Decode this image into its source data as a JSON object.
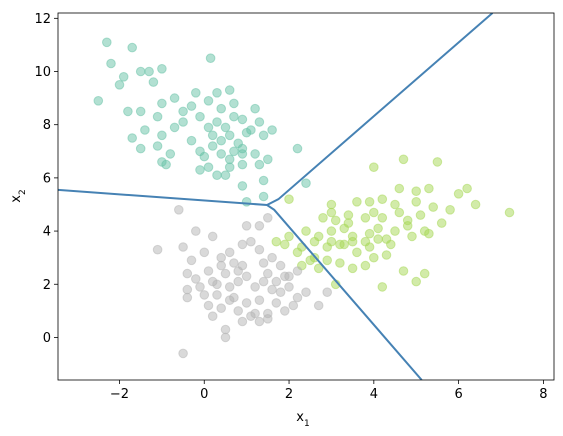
{
  "chart_data": {
    "type": "scatter",
    "title": "",
    "xlabel": "x",
    "xlabel_sub": "1",
    "ylabel": "x",
    "ylabel_sub": "2",
    "xlim": [
      -3.45,
      8.25
    ],
    "ylim": [
      -1.6,
      12.2
    ],
    "xticks": [
      -2,
      0,
      2,
      4,
      6,
      8
    ],
    "yticks": [
      0,
      2,
      4,
      6,
      8,
      10,
      12
    ],
    "grid": false,
    "legend": "none",
    "point_alpha": 0.5,
    "series": [
      {
        "color": "#66c2a5",
        "points": [
          [
            -2.3,
            11.1
          ],
          [
            -1.7,
            10.9
          ],
          [
            -2.2,
            10.3
          ],
          [
            -1.3,
            10.0
          ],
          [
            -1.0,
            10.1
          ],
          [
            0.15,
            10.5
          ],
          [
            -1.5,
            10.0
          ],
          [
            -1.9,
            9.8
          ],
          [
            -2.5,
            8.9
          ],
          [
            -2.0,
            9.5
          ],
          [
            -1.2,
            9.6
          ],
          [
            -0.7,
            9.0
          ],
          [
            -0.2,
            9.2
          ],
          [
            0.3,
            9.2
          ],
          [
            0.6,
            9.3
          ],
          [
            -1.5,
            8.5
          ],
          [
            -1.0,
            8.8
          ],
          [
            -1.1,
            8.3
          ],
          [
            -0.5,
            8.5
          ],
          [
            -0.3,
            8.7
          ],
          [
            0.1,
            8.9
          ],
          [
            0.4,
            8.6
          ],
          [
            0.7,
            8.8
          ],
          [
            1.2,
            8.6
          ],
          [
            -1.8,
            8.5
          ],
          [
            -0.5,
            8.1
          ],
          [
            -0.1,
            8.3
          ],
          [
            0.3,
            8.1
          ],
          [
            0.5,
            7.9
          ],
          [
            0.9,
            8.2
          ],
          [
            1.3,
            8.1
          ],
          [
            -1.4,
            7.8
          ],
          [
            -1.7,
            7.5
          ],
          [
            -1.5,
            7.1
          ],
          [
            -1.0,
            7.6
          ],
          [
            -0.3,
            7.4
          ],
          [
            0.1,
            7.9
          ],
          [
            0.2,
            7.6
          ],
          [
            0.4,
            7.4
          ],
          [
            0.6,
            7.6
          ],
          [
            0.8,
            7.3
          ],
          [
            1.0,
            7.7
          ],
          [
            1.4,
            7.6
          ],
          [
            1.6,
            7.8
          ],
          [
            -1.1,
            7.2
          ],
          [
            -0.8,
            6.9
          ],
          [
            -0.1,
            7.0
          ],
          [
            0.0,
            6.8
          ],
          [
            0.4,
            6.9
          ],
          [
            0.6,
            6.7
          ],
          [
            0.7,
            7.0
          ],
          [
            0.9,
            6.9
          ],
          [
            1.2,
            6.9
          ],
          [
            1.5,
            6.7
          ],
          [
            2.2,
            7.1
          ],
          [
            -1.0,
            6.6
          ],
          [
            -0.9,
            6.5
          ],
          [
            -0.1,
            6.3
          ],
          [
            0.1,
            6.4
          ],
          [
            0.6,
            6.4
          ],
          [
            0.9,
            6.5
          ],
          [
            1.3,
            6.5
          ],
          [
            0.5,
            6.1
          ],
          [
            1.4,
            5.9
          ],
          [
            0.9,
            5.7
          ],
          [
            1.4,
            5.3
          ],
          [
            2.4,
            5.8
          ],
          [
            1.0,
            5.1
          ],
          [
            0.2,
            7.2
          ],
          [
            0.7,
            8.3
          ],
          [
            -0.7,
            7.9
          ],
          [
            1.1,
            7.8
          ],
          [
            0.9,
            7.1
          ],
          [
            0.3,
            6.1
          ]
        ]
      },
      {
        "color": "#a6d854",
        "points": [
          [
            4.7,
            6.7
          ],
          [
            5.5,
            6.6
          ],
          [
            4.0,
            6.4
          ],
          [
            6.2,
            5.6
          ],
          [
            4.6,
            5.6
          ],
          [
            5.0,
            5.5
          ],
          [
            5.3,
            5.6
          ],
          [
            6.0,
            5.4
          ],
          [
            6.4,
            5.0
          ],
          [
            3.0,
            5.0
          ],
          [
            3.6,
            5.1
          ],
          [
            3.9,
            5.1
          ],
          [
            4.2,
            5.2
          ],
          [
            4.5,
            5.0
          ],
          [
            5.0,
            5.1
          ],
          [
            5.4,
            4.9
          ],
          [
            5.8,
            4.8
          ],
          [
            2.0,
            5.2
          ],
          [
            3.0,
            4.7
          ],
          [
            3.4,
            4.6
          ],
          [
            4.0,
            4.7
          ],
          [
            4.6,
            4.7
          ],
          [
            5.6,
            4.3
          ],
          [
            7.2,
            4.7
          ],
          [
            2.8,
            4.5
          ],
          [
            3.1,
            4.4
          ],
          [
            3.4,
            4.3
          ],
          [
            3.8,
            4.5
          ],
          [
            4.2,
            4.5
          ],
          [
            4.8,
            4.2
          ],
          [
            5.2,
            4.0
          ],
          [
            2.4,
            4.0
          ],
          [
            2.7,
            3.8
          ],
          [
            3.0,
            4.0
          ],
          [
            3.5,
            3.8
          ],
          [
            3.9,
            3.9
          ],
          [
            4.1,
            4.1
          ],
          [
            4.5,
            4.0
          ],
          [
            4.9,
            3.8
          ],
          [
            5.3,
            3.9
          ],
          [
            2.0,
            3.8
          ],
          [
            1.9,
            3.5
          ],
          [
            2.3,
            3.4
          ],
          [
            2.6,
            3.6
          ],
          [
            3.0,
            3.6
          ],
          [
            3.2,
            3.5
          ],
          [
            3.3,
            3.5
          ],
          [
            3.5,
            3.6
          ],
          [
            3.8,
            3.6
          ],
          [
            4.1,
            3.7
          ],
          [
            4.3,
            3.7
          ],
          [
            1.7,
            3.6
          ],
          [
            2.2,
            3.2
          ],
          [
            2.6,
            3.0
          ],
          [
            2.9,
            3.4
          ],
          [
            3.6,
            3.2
          ],
          [
            4.0,
            3.0
          ],
          [
            4.3,
            3.1
          ],
          [
            2.3,
            2.7
          ],
          [
            2.7,
            2.6
          ],
          [
            2.9,
            2.9
          ],
          [
            3.2,
            2.8
          ],
          [
            3.5,
            2.6
          ],
          [
            3.8,
            2.7
          ],
          [
            4.7,
            2.5
          ],
          [
            5.2,
            2.4
          ],
          [
            5.0,
            2.1
          ],
          [
            4.2,
            1.9
          ],
          [
            3.1,
            2.0
          ],
          [
            2.5,
            2.9
          ],
          [
            4.4,
            3.5
          ],
          [
            3.9,
            3.4
          ],
          [
            4.8,
            4.4
          ],
          [
            3.3,
            4.1
          ],
          [
            5.1,
            4.6
          ]
        ]
      },
      {
        "color": "#b3b3b3",
        "points": [
          [
            -0.6,
            4.8
          ],
          [
            -0.2,
            4.0
          ],
          [
            0.2,
            3.8
          ],
          [
            1.0,
            4.2
          ],
          [
            1.3,
            4.2
          ],
          [
            1.5,
            4.5
          ],
          [
            -1.1,
            3.3
          ],
          [
            -0.5,
            3.4
          ],
          [
            0.0,
            3.2
          ],
          [
            0.6,
            3.2
          ],
          [
            1.3,
            3.3
          ],
          [
            1.6,
            3.0
          ],
          [
            -0.3,
            2.9
          ],
          [
            0.4,
            3.0
          ],
          [
            0.7,
            2.8
          ],
          [
            0.9,
            2.7
          ],
          [
            1.4,
            2.8
          ],
          [
            1.8,
            2.7
          ],
          [
            -0.4,
            2.4
          ],
          [
            0.1,
            2.5
          ],
          [
            0.5,
            2.4
          ],
          [
            1.0,
            2.3
          ],
          [
            1.5,
            2.4
          ],
          [
            1.9,
            2.3
          ],
          [
            2.2,
            2.5
          ],
          [
            -0.4,
            1.8
          ],
          [
            -0.1,
            1.9
          ],
          [
            0.3,
            2.0
          ],
          [
            0.6,
            1.9
          ],
          [
            0.8,
            2.1
          ],
          [
            1.2,
            1.9
          ],
          [
            1.6,
            1.8
          ],
          [
            2.0,
            1.9
          ],
          [
            -0.4,
            1.5
          ],
          [
            0.0,
            1.6
          ],
          [
            0.3,
            1.6
          ],
          [
            0.7,
            1.5
          ],
          [
            1.0,
            1.3
          ],
          [
            1.3,
            1.4
          ],
          [
            1.7,
            1.3
          ],
          [
            2.2,
            1.5
          ],
          [
            2.4,
            1.7
          ],
          [
            0.4,
            1.1
          ],
          [
            0.8,
            1.0
          ],
          [
            1.1,
            0.8
          ],
          [
            1.5,
            0.9
          ],
          [
            1.9,
            1.0
          ],
          [
            2.1,
            1.2
          ],
          [
            2.7,
            1.2
          ],
          [
            0.2,
            0.8
          ],
          [
            0.9,
            0.6
          ],
          [
            1.3,
            0.6
          ],
          [
            1.5,
            0.7
          ],
          [
            0.5,
            0.3
          ],
          [
            0.5,
            0.0
          ],
          [
            -0.5,
            -0.6
          ],
          [
            2.0,
            2.3
          ],
          [
            0.8,
            2.5
          ],
          [
            1.1,
            3.6
          ],
          [
            0.2,
            2.1
          ],
          [
            1.4,
            2.1
          ],
          [
            0.6,
            1.4
          ],
          [
            1.8,
            1.7
          ],
          [
            -0.2,
            2.2
          ],
          [
            2.9,
            1.7
          ],
          [
            1.2,
            0.9
          ],
          [
            0.9,
            3.5
          ],
          [
            0.1,
            1.2
          ],
          [
            1.7,
            2.1
          ],
          [
            0.4,
            2.7
          ]
        ]
      }
    ],
    "boundaries": [
      {
        "color": "#4682b4",
        "points": [
          [
            1.48,
            4.98
          ],
          [
            1.75,
            5.2
          ],
          [
            6.8,
            12.2
          ]
        ]
      },
      {
        "color": "#4682b4",
        "points": [
          [
            -3.45,
            5.55
          ],
          [
            1.48,
            4.98
          ]
        ]
      },
      {
        "color": "#4682b4",
        "points": [
          [
            1.48,
            4.98
          ],
          [
            1.65,
            4.8
          ],
          [
            5.13,
            -1.6
          ]
        ]
      }
    ]
  }
}
